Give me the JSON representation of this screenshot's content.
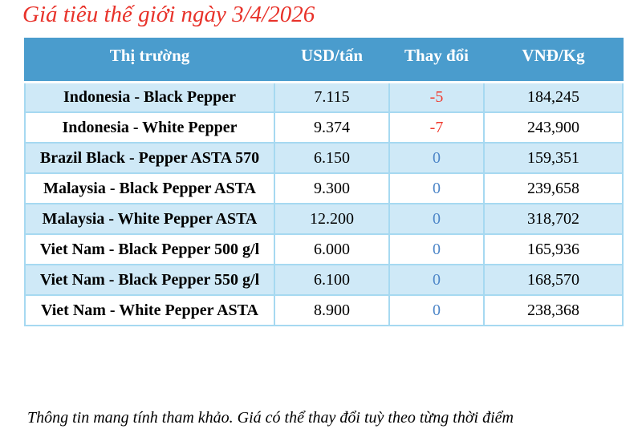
{
  "page": {
    "title": "Giá tiêu thế giới ngày 3/4/2026",
    "footer_note": "Thông tin mang tính tham khảo. Giá có thể thay đổi tuỳ theo từng thời điểm"
  },
  "table": {
    "columns": {
      "market": "Thị trường",
      "usd": "USD/tấn",
      "change": "Thay đổi",
      "vnd": "VNĐ/Kg"
    },
    "rows": [
      {
        "market": "Indonesia - Black Pepper",
        "usd": "7.115",
        "change": "-5",
        "vnd": "184,245"
      },
      {
        "market": "Indonesia - White Pepper",
        "usd": "9.374",
        "change": "-7",
        "vnd": "243,900"
      },
      {
        "market": "Brazil Black - Pepper ASTA 570",
        "usd": "6.150",
        "change": "0",
        "vnd": "159,351"
      },
      {
        "market": "Malaysia - Black Pepper ASTA",
        "usd": "9.300",
        "change": "0",
        "vnd": "239,658"
      },
      {
        "market": "Malaysia - White Pepper ASTA",
        "usd": "12.200",
        "change": "0",
        "vnd": "318,702"
      },
      {
        "market": "Viet Nam - Black Pepper 500 g/l",
        "usd": "6.000",
        "change": "0",
        "vnd": "165,936"
      },
      {
        "market": "Viet Nam - Black Pepper 550 g/l",
        "usd": "6.100",
        "change": "0",
        "vnd": "168,570"
      },
      {
        "market": "Viet Nam - White Pepper ASTA",
        "usd": "8.900",
        "change": "0",
        "vnd": "238,368"
      }
    ]
  },
  "colors": {
    "title_red": "#e8322a",
    "header_bg": "#4a9ccd",
    "header_text": "#ffffff",
    "row_alt_bg": "#cfe9f7",
    "row_plain_bg": "#ffffff",
    "cell_border": "#a6d9f1",
    "change_negative": "#f03a2e",
    "change_zero": "#4d86c8",
    "body_text": "#000000"
  }
}
